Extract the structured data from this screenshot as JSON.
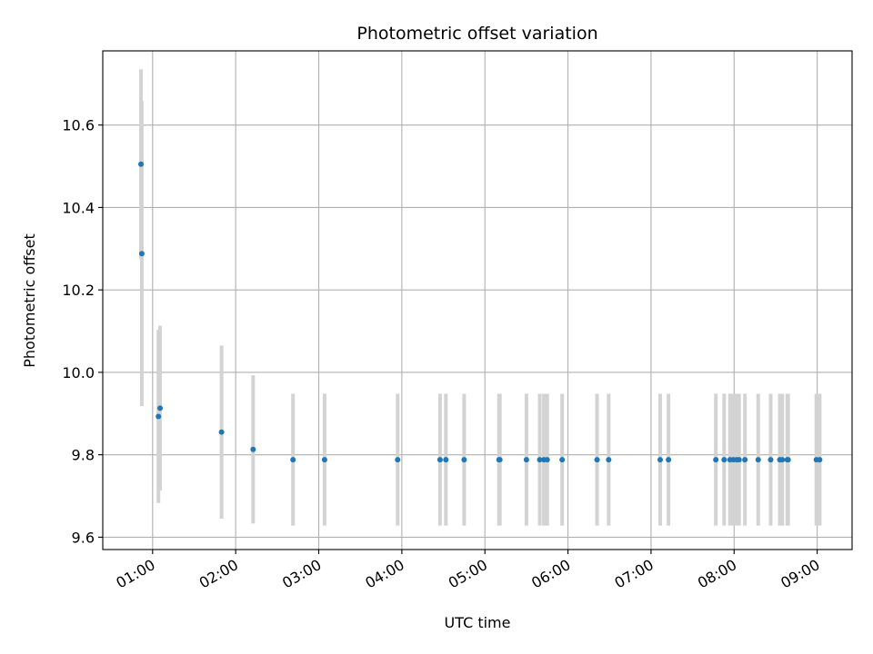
{
  "chart_data": {
    "type": "scatter",
    "title": "Photometric offset variation",
    "xlabel": "UTC time",
    "ylabel": "Photometric offset",
    "x_tick_labels": [
      "01:00",
      "02:00",
      "03:00",
      "04:00",
      "05:00",
      "06:00",
      "07:00",
      "08:00",
      "09:00"
    ],
    "x_tick_values_hours": [
      1,
      2,
      3,
      4,
      5,
      6,
      7,
      8,
      9
    ],
    "y_tick_values": [
      9.6,
      9.8,
      10.0,
      10.2,
      10.4,
      10.6
    ],
    "y_tick_labels": [
      "9.6",
      "9.8",
      "10.0",
      "10.2",
      "10.4",
      "10.6"
    ],
    "xlim_hours": [
      0.4,
      9.42
    ],
    "ylim": [
      9.57,
      10.78
    ],
    "grid": true,
    "colors": {
      "point": "#1f77b4",
      "errorbar": "#d3d3d3",
      "grid": "#b0b0b0"
    },
    "points": [
      {
        "t": 0.86,
        "y": 10.505,
        "err": 0.23
      },
      {
        "t": 0.87,
        "y": 10.288,
        "err": 0.37
      },
      {
        "t": 1.07,
        "y": 9.893,
        "err": 0.21
      },
      {
        "t": 1.09,
        "y": 9.913,
        "err": 0.2
      },
      {
        "t": 1.83,
        "y": 9.855,
        "err": 0.21
      },
      {
        "t": 2.21,
        "y": 9.813,
        "err": 0.18
      },
      {
        "t": 2.69,
        "y": 9.788,
        "err": 0.16
      },
      {
        "t": 3.07,
        "y": 9.788,
        "err": 0.16
      },
      {
        "t": 3.95,
        "y": 9.788,
        "err": 0.16
      },
      {
        "t": 4.46,
        "y": 9.788,
        "err": 0.16
      },
      {
        "t": 4.53,
        "y": 9.788,
        "err": 0.16
      },
      {
        "t": 4.75,
        "y": 9.788,
        "err": 0.16
      },
      {
        "t": 5.17,
        "y": 9.788,
        "err": 0.16
      },
      {
        "t": 5.18,
        "y": 9.788,
        "err": 0.16
      },
      {
        "t": 5.5,
        "y": 9.788,
        "err": 0.16
      },
      {
        "t": 5.66,
        "y": 9.788,
        "err": 0.16
      },
      {
        "t": 5.71,
        "y": 9.788,
        "err": 0.16
      },
      {
        "t": 5.75,
        "y": 9.788,
        "err": 0.16
      },
      {
        "t": 5.93,
        "y": 9.788,
        "err": 0.16
      },
      {
        "t": 6.35,
        "y": 9.788,
        "err": 0.16
      },
      {
        "t": 6.49,
        "y": 9.788,
        "err": 0.16
      },
      {
        "t": 7.11,
        "y": 9.788,
        "err": 0.16
      },
      {
        "t": 7.21,
        "y": 9.788,
        "err": 0.16
      },
      {
        "t": 7.78,
        "y": 9.788,
        "err": 0.16
      },
      {
        "t": 7.88,
        "y": 9.788,
        "err": 0.16
      },
      {
        "t": 7.95,
        "y": 9.788,
        "err": 0.16
      },
      {
        "t": 7.99,
        "y": 9.788,
        "err": 0.16
      },
      {
        "t": 8.03,
        "y": 9.788,
        "err": 0.16
      },
      {
        "t": 8.06,
        "y": 9.788,
        "err": 0.16
      },
      {
        "t": 8.13,
        "y": 9.788,
        "err": 0.16
      },
      {
        "t": 8.29,
        "y": 9.788,
        "err": 0.16
      },
      {
        "t": 8.44,
        "y": 9.788,
        "err": 0.16
      },
      {
        "t": 8.55,
        "y": 9.788,
        "err": 0.16
      },
      {
        "t": 8.58,
        "y": 9.788,
        "err": 0.16
      },
      {
        "t": 8.64,
        "y": 9.788,
        "err": 0.16
      },
      {
        "t": 8.65,
        "y": 9.788,
        "err": 0.16
      },
      {
        "t": 8.99,
        "y": 9.788,
        "err": 0.16
      },
      {
        "t": 9.03,
        "y": 9.788,
        "err": 0.16
      }
    ]
  }
}
